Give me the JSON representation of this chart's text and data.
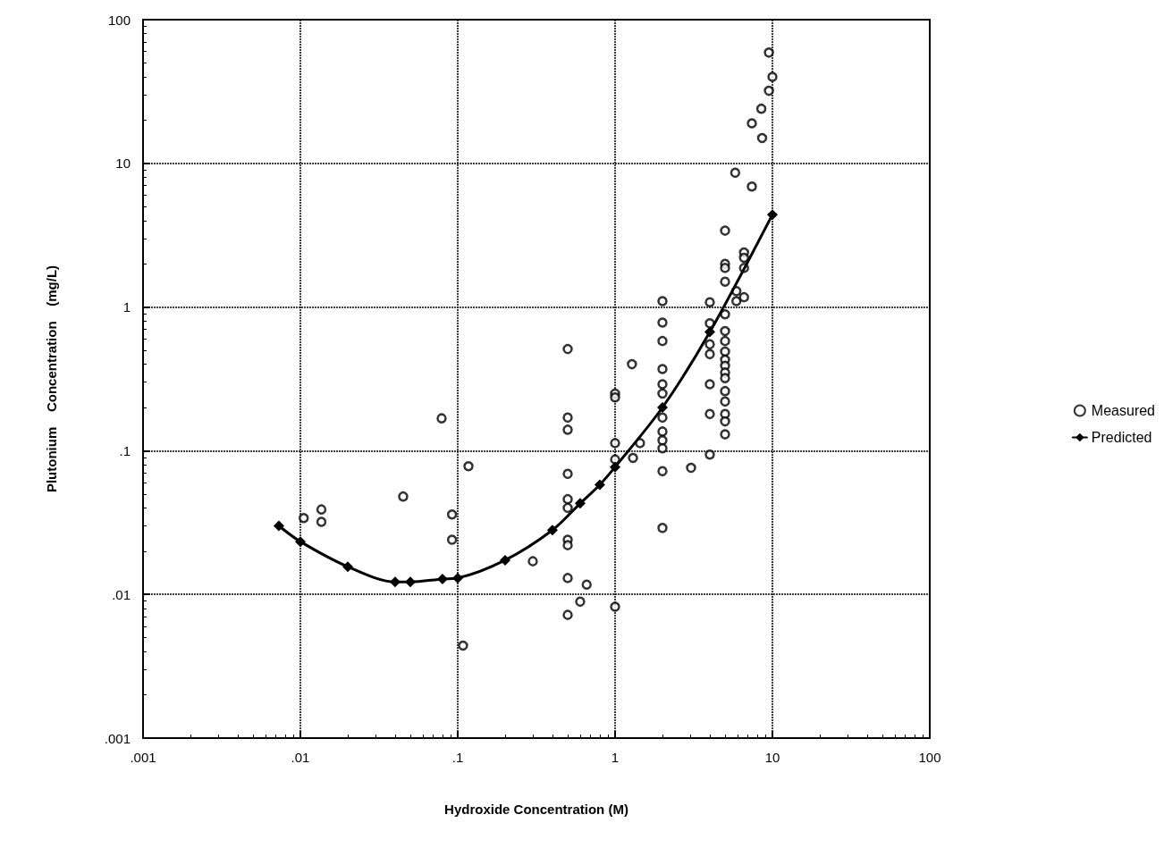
{
  "chart_data": {
    "type": "scatter",
    "xlabel": "Hydroxide Concentration (M)",
    "ylabel": "Plutonium    Concentration    (mg/L)",
    "log": "xy",
    "grid": true,
    "legend": "right",
    "xlim": [
      0.001,
      100
    ],
    "ylim": [
      0.001,
      100
    ],
    "xticks": [
      {
        "value": 0.001,
        "label": ".001"
      },
      {
        "value": 0.01,
        "label": ".01"
      },
      {
        "value": 0.1,
        "label": ".1"
      },
      1,
      10,
      100
    ],
    "yticks": [
      {
        "value": 0.001,
        "label": ".001"
      },
      {
        "value": 0.01,
        "label": ".01"
      },
      {
        "value": 0.1,
        "label": ".1"
      },
      1,
      10,
      100
    ],
    "series": [
      {
        "name": "Measured",
        "marker": "circle",
        "color": "#000000",
        "x": [
          0.0105,
          0.0136,
          0.0136,
          0.045,
          0.079,
          0.092,
          0.092,
          0.117,
          0.108,
          0.5,
          0.5,
          0.5,
          0.5,
          0.5,
          0.5,
          0.5,
          0.5,
          0.5,
          0.5,
          0.6,
          0.66,
          0.3,
          1,
          1,
          1,
          1,
          1,
          1.28,
          1.3,
          1.44,
          3.04,
          2,
          2,
          2,
          2,
          2,
          2,
          2,
          2,
          2,
          2,
          2,
          2,
          4,
          4,
          4,
          4,
          4,
          4,
          4,
          5,
          5,
          5,
          5,
          5,
          5,
          5,
          5,
          5,
          5,
          5,
          5,
          5,
          5,
          5,
          5,
          5,
          5.8,
          7.4,
          6.6,
          6.6,
          6.6,
          5.9,
          5.9,
          6.6,
          9.5,
          10,
          9.5,
          8.5,
          7.4,
          8.6
        ],
        "values": [
          0.034,
          0.039,
          0.032,
          0.048,
          0.168,
          0.036,
          0.024,
          0.078,
          0.0044,
          0.51,
          0.17,
          0.14,
          0.069,
          0.046,
          0.04,
          0.024,
          0.022,
          0.013,
          0.0072,
          0.0089,
          0.0117,
          0.017,
          0.25,
          0.235,
          0.113,
          0.087,
          0.0082,
          0.4,
          0.089,
          0.113,
          0.076,
          1.1,
          0.78,
          0.58,
          0.37,
          0.29,
          0.25,
          0.17,
          0.136,
          0.118,
          0.104,
          0.072,
          0.029,
          1.08,
          0.77,
          0.55,
          0.47,
          0.29,
          0.18,
          0.094,
          3.4,
          2.0,
          1.87,
          1.5,
          0.89,
          0.68,
          0.58,
          0.49,
          0.43,
          0.39,
          0.35,
          0.32,
          0.26,
          0.22,
          0.18,
          0.16,
          0.13,
          8.6,
          6.9,
          2.4,
          2.2,
          1.87,
          1.29,
          1.1,
          1.17,
          59,
          40,
          32,
          24,
          19,
          15
        ]
      },
      {
        "name": "Predicted",
        "type": "line",
        "marker": "diamond",
        "line_style": "solid",
        "color": "#000000",
        "x": [
          0.0073,
          0.01,
          0.02,
          0.04,
          0.05,
          0.08,
          0.1,
          0.2,
          0.4,
          0.6,
          0.8,
          1,
          2,
          4,
          10
        ],
        "values": [
          0.03,
          0.0233,
          0.0156,
          0.0122,
          0.0122,
          0.0128,
          0.013,
          0.0173,
          0.028,
          0.043,
          0.058,
          0.077,
          0.2,
          0.67,
          4.4
        ]
      }
    ]
  }
}
